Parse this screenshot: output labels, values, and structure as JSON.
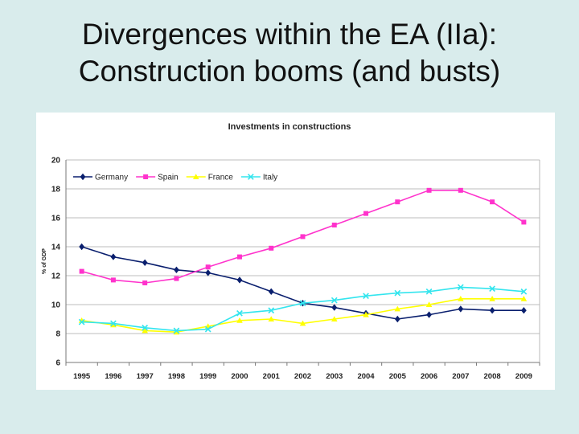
{
  "slide": {
    "title_line1": "Divergences within the EA (IIa):",
    "title_line2": "Construction booms (and busts)"
  },
  "chart_data": {
    "type": "line",
    "title": "Investments in constructions",
    "xlabel": "",
    "ylabel": "% of GDP",
    "ylim": [
      6,
      20
    ],
    "yticks": [
      6,
      8,
      10,
      12,
      14,
      16,
      18,
      20
    ],
    "grid": true,
    "legend_position": "top-left",
    "categories": [
      "1995",
      "1996",
      "1997",
      "1998",
      "1999",
      "2000",
      "2001",
      "2002",
      "2003",
      "2004",
      "2005",
      "2006",
      "2007",
      "2008",
      "2009"
    ],
    "series": [
      {
        "name": "Germany",
        "color": "#0a1f6e",
        "marker": "diamond",
        "values": [
          14.0,
          13.3,
          12.9,
          12.4,
          12.2,
          11.7,
          10.9,
          10.1,
          9.8,
          9.4,
          9.0,
          9.3,
          9.7,
          9.6,
          9.6
        ]
      },
      {
        "name": "Spain",
        "color": "#ff33cc",
        "marker": "square",
        "values": [
          12.3,
          11.7,
          11.5,
          11.8,
          12.6,
          13.3,
          13.9,
          14.7,
          15.5,
          16.3,
          17.1,
          17.9,
          17.9,
          17.1,
          15.7
        ]
      },
      {
        "name": "France",
        "color": "#ffff00",
        "marker": "triangle",
        "values": [
          8.9,
          8.6,
          8.2,
          8.1,
          8.5,
          8.9,
          9.0,
          8.7,
          9.0,
          9.3,
          9.7,
          10.0,
          10.4,
          10.4,
          10.4
        ]
      },
      {
        "name": "Italy",
        "color": "#33e5ee",
        "marker": "x",
        "values": [
          8.8,
          8.7,
          8.4,
          8.2,
          8.3,
          9.4,
          9.6,
          10.1,
          10.3,
          10.6,
          10.8,
          10.9,
          11.2,
          11.1,
          10.9
        ]
      }
    ]
  }
}
